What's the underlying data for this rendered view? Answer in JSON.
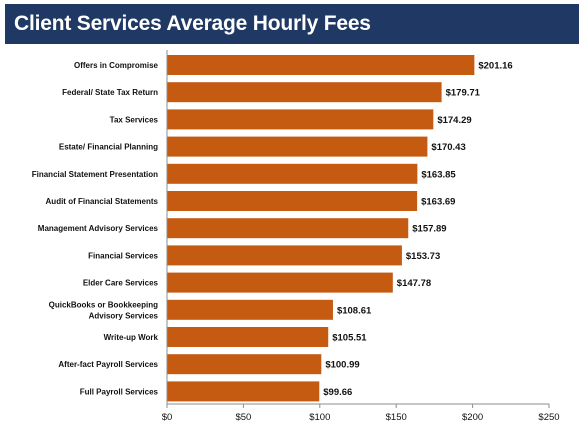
{
  "title": "Client Services Average Hourly Fees",
  "colors": {
    "bar": "#c55a11",
    "title_bg": "#1f3864",
    "axis": "#8c8c8c"
  },
  "chart_data": {
    "type": "bar",
    "orientation": "horizontal",
    "title": "Client Services Average Hourly Fees",
    "categories": [
      "Offers in Compromise",
      "Federal/ State Tax Return",
      "Tax Services",
      "Estate/ Financial Planning",
      "Financial Statement Presentation",
      "Audit of Financial Statements",
      "Management Advisory Services",
      "Financial Services",
      "Elder Care Services",
      "QuickBooks or Bookkeeping Advisory Services",
      "Write-up Work",
      "After-fact Payroll Services",
      "Full Payroll Services"
    ],
    "category_lines": [
      [
        "Offers in Compromise"
      ],
      [
        "Federal/ State Tax Return"
      ],
      [
        "Tax Services"
      ],
      [
        "Estate/ Financial Planning"
      ],
      [
        "Financial Statement Presentation"
      ],
      [
        "Audit of Financial Statements"
      ],
      [
        "Management Advisory Services"
      ],
      [
        "Financial Services"
      ],
      [
        "Elder Care Services"
      ],
      [
        "QuickBooks or Bookkeeping",
        "Advisory Services"
      ],
      [
        "Write-up Work"
      ],
      [
        "After-fact Payroll Services"
      ],
      [
        "Full Payroll Services"
      ]
    ],
    "values": [
      201.16,
      179.71,
      174.29,
      170.43,
      163.85,
      163.69,
      157.89,
      153.73,
      147.78,
      108.61,
      105.51,
      100.99,
      99.66
    ],
    "value_labels": [
      "$201.16",
      "$179.71",
      "$174.29",
      "$170.43",
      "$163.85",
      "$163.69",
      "$157.89",
      "$153.73",
      "$147.78",
      "$108.61",
      "$105.51",
      "$100.99",
      "$99.66"
    ],
    "xlim": [
      0,
      250
    ],
    "ticks": [
      0,
      50,
      100,
      150,
      200,
      250
    ],
    "tick_labels": [
      "$0",
      "$50",
      "$100",
      "$150",
      "$200",
      "$250"
    ],
    "xlabel": "",
    "ylabel": "",
    "grid": false,
    "legend": "none"
  }
}
